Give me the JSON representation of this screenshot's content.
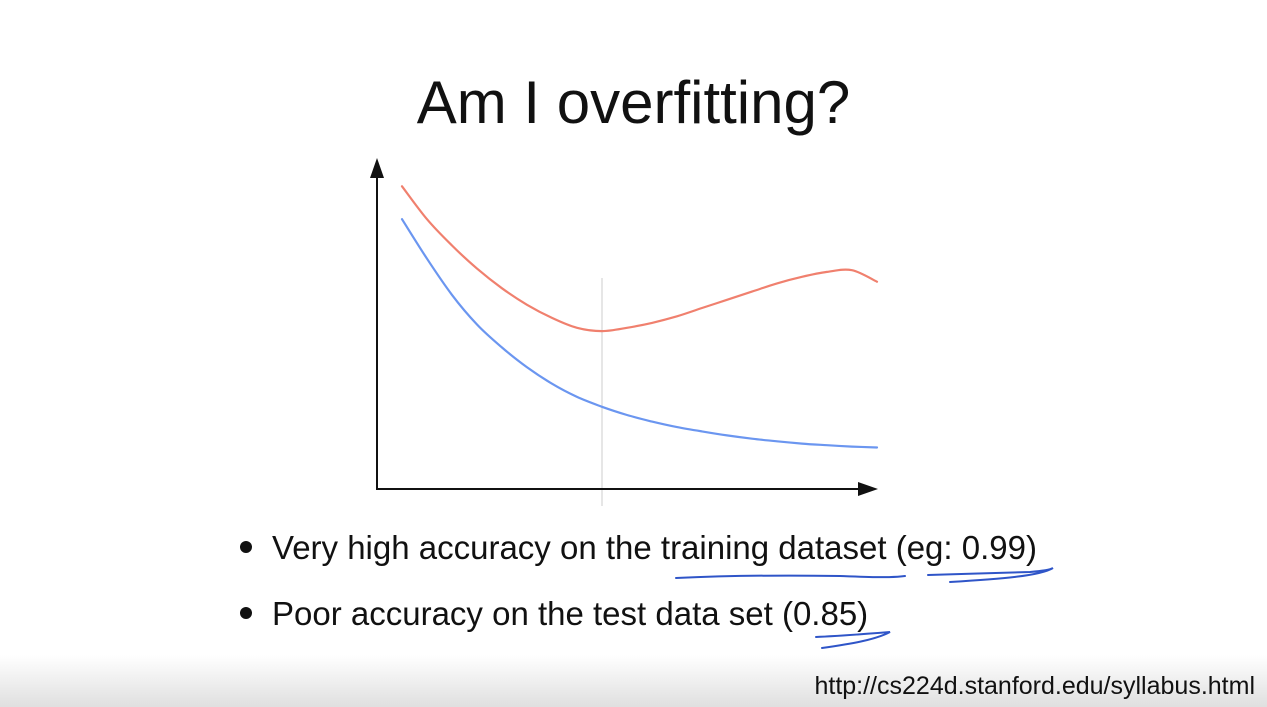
{
  "slide": {
    "title": "Am I overfitting?",
    "bullets": [
      "Very high accuracy on the training dataset (eg: 0.99)",
      "Poor accuracy on the test data set (0.85)"
    ],
    "source_url": "http://cs224d.stanford.edu/syllabus.html"
  },
  "colors": {
    "validation_curve": "#f0806e",
    "training_curve": "#6b96f0",
    "axis": "#111111",
    "vline": "#dddddd",
    "ink_annotation": "#2f55c8"
  },
  "chart_data": {
    "type": "line",
    "title": "",
    "xlabel": "",
    "ylabel": "",
    "xlim": [
      0,
      10
    ],
    "ylim": [
      0,
      10
    ],
    "grid": false,
    "legend": "none",
    "vline_x": 4.5,
    "series": [
      {
        "color": "#f0806e",
        "x": [
          0.5,
          1,
          1.5,
          2,
          2.5,
          3,
          3.5,
          4,
          4.5,
          5,
          5.5,
          6,
          6.5,
          7,
          7.5,
          8,
          8.5,
          9,
          9.5,
          10
        ],
        "y": [
          9.2,
          8.2,
          7.4,
          6.7,
          6.1,
          5.6,
          5.2,
          4.9,
          4.8,
          4.9,
          5.05,
          5.25,
          5.5,
          5.75,
          6.0,
          6.25,
          6.45,
          6.6,
          6.65,
          6.3
        ]
      },
      {
        "color": "#6b96f0",
        "x": [
          0.5,
          1,
          1.5,
          2,
          2.5,
          3,
          3.5,
          4,
          4.5,
          5,
          5.5,
          6,
          6.5,
          7,
          7.5,
          8,
          8.5,
          9,
          9.5,
          10
        ],
        "y": [
          8.2,
          7.0,
          5.9,
          5.0,
          4.3,
          3.7,
          3.2,
          2.8,
          2.5,
          2.25,
          2.05,
          1.88,
          1.75,
          1.63,
          1.53,
          1.45,
          1.38,
          1.33,
          1.29,
          1.26
        ]
      }
    ]
  }
}
